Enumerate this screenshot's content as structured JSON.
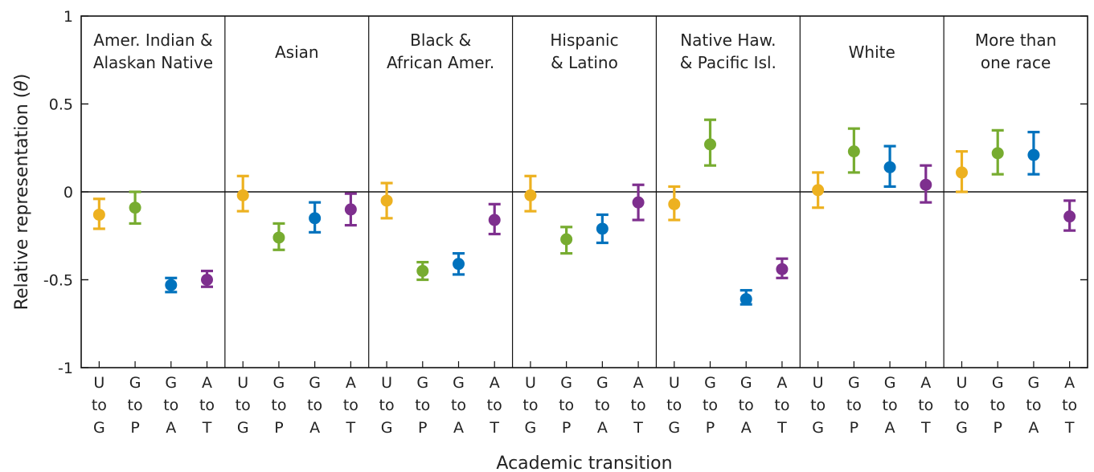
{
  "chart_data": {
    "type": "scatter",
    "ylabel_prefix": "Relative representation (",
    "ylabel_symbol": "θ",
    "ylabel_suffix": ")",
    "xlabel": "Academic transition",
    "ylim": [
      -1,
      1
    ],
    "yticks": [
      {
        "value": 1,
        "label": "1"
      },
      {
        "value": 0.5,
        "label": "0.5"
      },
      {
        "value": 0,
        "label": "0"
      },
      {
        "value": -0.5,
        "label": "-0.5"
      },
      {
        "value": -1,
        "label": "-1"
      }
    ],
    "transitions": [
      {
        "lines": [
          "U",
          "to",
          "G"
        ],
        "color": "#EDB120"
      },
      {
        "lines": [
          "G",
          "to",
          "P"
        ],
        "color": "#77AC30"
      },
      {
        "lines": [
          "G",
          "to",
          "A"
        ],
        "color": "#0072BD"
      },
      {
        "lines": [
          "A",
          "to",
          "T"
        ],
        "color": "#7E2F8E"
      }
    ],
    "groups": [
      {
        "lines": [
          "Amer. Indian &",
          "Alaskan Native"
        ],
        "points": [
          {
            "y": -0.13,
            "low": -0.21,
            "high": -0.04
          },
          {
            "y": -0.09,
            "low": -0.18,
            "high": 0.0
          },
          {
            "y": -0.53,
            "low": -0.57,
            "high": -0.49
          },
          {
            "y": -0.5,
            "low": -0.54,
            "high": -0.45
          }
        ]
      },
      {
        "lines": [
          "Asian"
        ],
        "points": [
          {
            "y": -0.02,
            "low": -0.11,
            "high": 0.09
          },
          {
            "y": -0.26,
            "low": -0.33,
            "high": -0.18
          },
          {
            "y": -0.15,
            "low": -0.23,
            "high": -0.06
          },
          {
            "y": -0.1,
            "low": -0.19,
            "high": -0.01
          }
        ]
      },
      {
        "lines": [
          "Black &",
          "African Amer."
        ],
        "points": [
          {
            "y": -0.05,
            "low": -0.15,
            "high": 0.05
          },
          {
            "y": -0.45,
            "low": -0.5,
            "high": -0.4
          },
          {
            "y": -0.41,
            "low": -0.47,
            "high": -0.35
          },
          {
            "y": -0.16,
            "low": -0.24,
            "high": -0.07
          }
        ]
      },
      {
        "lines": [
          "Hispanic",
          "& Latino"
        ],
        "points": [
          {
            "y": -0.02,
            "low": -0.11,
            "high": 0.09
          },
          {
            "y": -0.27,
            "low": -0.35,
            "high": -0.2
          },
          {
            "y": -0.21,
            "low": -0.29,
            "high": -0.13
          },
          {
            "y": -0.06,
            "low": -0.16,
            "high": 0.04
          }
        ]
      },
      {
        "lines": [
          "Native Haw.",
          "& Pacific Isl."
        ],
        "points": [
          {
            "y": -0.07,
            "low": -0.16,
            "high": 0.03
          },
          {
            "y": 0.27,
            "low": 0.15,
            "high": 0.41
          },
          {
            "y": -0.61,
            "low": -0.64,
            "high": -0.56
          },
          {
            "y": -0.44,
            "low": -0.49,
            "high": -0.38
          }
        ]
      },
      {
        "lines": [
          "White"
        ],
        "points": [
          {
            "y": 0.01,
            "low": -0.09,
            "high": 0.11
          },
          {
            "y": 0.23,
            "low": 0.11,
            "high": 0.36
          },
          {
            "y": 0.14,
            "low": 0.03,
            "high": 0.26
          },
          {
            "y": 0.04,
            "low": -0.06,
            "high": 0.15
          }
        ]
      },
      {
        "lines": [
          "More than",
          "one race"
        ],
        "points": [
          {
            "y": 0.11,
            "low": 0.0,
            "high": 0.23
          },
          {
            "y": 0.22,
            "low": 0.1,
            "high": 0.35
          },
          {
            "y": 0.21,
            "low": 0.1,
            "high": 0.34
          },
          {
            "y": -0.14,
            "low": -0.22,
            "high": -0.05
          }
        ]
      }
    ]
  }
}
